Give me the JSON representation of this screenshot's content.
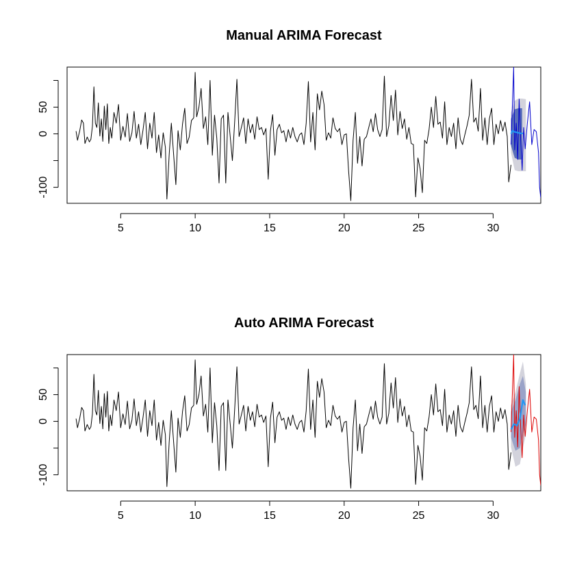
{
  "chart_data": [
    {
      "type": "line",
      "title": "Manual ARIMA Forecast",
      "xlabel": "",
      "ylabel": "",
      "xlim": [
        1.4,
        33.2
      ],
      "ylim": [
        -130,
        125
      ],
      "x_ticks": [
        5,
        10,
        15,
        20,
        25,
        30
      ],
      "x_tick_labels": [
        "5",
        "10",
        "15",
        "20",
        "25",
        "30"
      ],
      "y_ticks": [
        -100,
        -50,
        0,
        50,
        100
      ],
      "y_tick_labels": [
        "-100",
        "",
        "0",
        "50",
        ""
      ],
      "grid": false,
      "legend": "none",
      "colors": {
        "history": "#000000",
        "test": "#0000cc",
        "forecast": "#2196f3",
        "pi80": "#5a6fb8",
        "pi95": "#d3d3dc"
      },
      "history": {
        "x_start": 2,
        "x_end": 31.2,
        "points": [
          [
            2.0,
            5
          ],
          [
            2.1,
            -12
          ],
          [
            2.25,
            6
          ],
          [
            2.38,
            26
          ],
          [
            2.5,
            20
          ],
          [
            2.6,
            -18
          ],
          [
            2.75,
            -6
          ],
          [
            2.9,
            -15
          ],
          [
            3.0,
            -10
          ],
          [
            3.1,
            14
          ],
          [
            3.2,
            88
          ],
          [
            3.3,
            20
          ],
          [
            3.4,
            12
          ],
          [
            3.5,
            58
          ],
          [
            3.6,
            -4
          ],
          [
            3.7,
            28
          ],
          [
            3.8,
            -14
          ],
          [
            3.9,
            52
          ],
          [
            4.0,
            8
          ],
          [
            4.1,
            56
          ],
          [
            4.2,
            -18
          ],
          [
            4.3,
            12
          ],
          [
            4.4,
            -8
          ],
          [
            4.55,
            40
          ],
          [
            4.7,
            20
          ],
          [
            4.85,
            55
          ],
          [
            5.0,
            -12
          ],
          [
            5.15,
            14
          ],
          [
            5.3,
            -6
          ],
          [
            5.45,
            38
          ],
          [
            5.6,
            -14
          ],
          [
            5.75,
            2
          ],
          [
            5.9,
            42
          ],
          [
            6.05,
            -8
          ],
          [
            6.2,
            18
          ],
          [
            6.35,
            -20
          ],
          [
            6.5,
            8
          ],
          [
            6.65,
            40
          ],
          [
            6.8,
            -28
          ],
          [
            6.95,
            20
          ],
          [
            7.1,
            -8
          ],
          [
            7.25,
            40
          ],
          [
            7.4,
            -35
          ],
          [
            7.55,
            -2
          ],
          [
            7.7,
            -45
          ],
          [
            7.85,
            2
          ],
          [
            8.0,
            -25
          ],
          [
            8.1,
            -122
          ],
          [
            8.25,
            -40
          ],
          [
            8.4,
            20
          ],
          [
            8.55,
            -38
          ],
          [
            8.7,
            -95
          ],
          [
            8.85,
            6
          ],
          [
            9.0,
            -30
          ],
          [
            9.15,
            18
          ],
          [
            9.3,
            48
          ],
          [
            9.45,
            -18
          ],
          [
            9.6,
            -6
          ],
          [
            9.75,
            25
          ],
          [
            9.9,
            30
          ],
          [
            10.0,
            115
          ],
          [
            10.1,
            32
          ],
          [
            10.25,
            50
          ],
          [
            10.4,
            85
          ],
          [
            10.55,
            10
          ],
          [
            10.7,
            32
          ],
          [
            10.85,
            -20
          ],
          [
            11.0,
            100
          ],
          [
            11.15,
            -40
          ],
          [
            11.3,
            35
          ],
          [
            11.45,
            -8
          ],
          [
            11.6,
            -92
          ],
          [
            11.75,
            28
          ],
          [
            11.9,
            35
          ],
          [
            12.05,
            -92
          ],
          [
            12.2,
            40
          ],
          [
            12.35,
            -5
          ],
          [
            12.5,
            -50
          ],
          [
            12.65,
            22
          ],
          [
            12.8,
            102
          ],
          [
            12.95,
            -5
          ],
          [
            13.1,
            12
          ],
          [
            13.25,
            30
          ],
          [
            13.4,
            -18
          ],
          [
            13.55,
            28
          ],
          [
            13.7,
            2
          ],
          [
            13.85,
            18
          ],
          [
            14.0,
            -10
          ],
          [
            14.15,
            32
          ],
          [
            14.3,
            8
          ],
          [
            14.45,
            12
          ],
          [
            14.6,
            -2
          ],
          [
            14.75,
            10
          ],
          [
            14.9,
            -85
          ],
          [
            15.05,
            5
          ],
          [
            15.2,
            36
          ],
          [
            15.35,
            -40
          ],
          [
            15.5,
            8
          ],
          [
            15.65,
            18
          ],
          [
            15.8,
            2
          ],
          [
            15.95,
            6
          ],
          [
            16.1,
            -15
          ],
          [
            16.25,
            8
          ],
          [
            16.4,
            -8
          ],
          [
            16.55,
            12
          ],
          [
            16.7,
            -5
          ],
          [
            16.85,
            -15
          ],
          [
            17.0,
            -2
          ],
          [
            17.15,
            2
          ],
          [
            17.3,
            -20
          ],
          [
            17.45,
            20
          ],
          [
            17.6,
            98
          ],
          [
            17.75,
            -15
          ],
          [
            17.9,
            40
          ],
          [
            18.05,
            -30
          ],
          [
            18.2,
            75
          ],
          [
            18.35,
            45
          ],
          [
            18.5,
            80
          ],
          [
            18.65,
            55
          ],
          [
            18.8,
            -12
          ],
          [
            18.95,
            2
          ],
          [
            19.1,
            -8
          ],
          [
            19.25,
            30
          ],
          [
            19.4,
            10
          ],
          [
            19.55,
            4
          ],
          [
            19.7,
            10
          ],
          [
            19.85,
            -20
          ],
          [
            20.0,
            -2
          ],
          [
            20.15,
            0
          ],
          [
            20.3,
            -70
          ],
          [
            20.45,
            -125
          ],
          [
            20.6,
            -12
          ],
          [
            20.75,
            40
          ],
          [
            20.9,
            -55
          ],
          [
            21.05,
            -5
          ],
          [
            21.2,
            -60
          ],
          [
            21.35,
            -10
          ],
          [
            21.5,
            -5
          ],
          [
            21.65,
            12
          ],
          [
            21.8,
            28
          ],
          [
            21.95,
            4
          ],
          [
            22.1,
            38
          ],
          [
            22.25,
            8
          ],
          [
            22.4,
            -5
          ],
          [
            22.55,
            8
          ],
          [
            22.7,
            108
          ],
          [
            22.85,
            -5
          ],
          [
            23.0,
            15
          ],
          [
            23.15,
            72
          ],
          [
            23.3,
            25
          ],
          [
            23.45,
            82
          ],
          [
            23.6,
            -2
          ],
          [
            23.75,
            42
          ],
          [
            23.9,
            10
          ],
          [
            24.05,
            28
          ],
          [
            24.2,
            -10
          ],
          [
            24.35,
            12
          ],
          [
            24.5,
            -18
          ],
          [
            24.65,
            -20
          ],
          [
            24.8,
            -118
          ],
          [
            24.95,
            -45
          ],
          [
            25.1,
            -65
          ],
          [
            25.25,
            -110
          ],
          [
            25.4,
            -12
          ],
          [
            25.55,
            -18
          ],
          [
            25.7,
            8
          ],
          [
            25.85,
            50
          ],
          [
            26.0,
            12
          ],
          [
            26.15,
            70
          ],
          [
            26.3,
            18
          ],
          [
            26.45,
            22
          ],
          [
            26.6,
            -8
          ],
          [
            26.75,
            60
          ],
          [
            26.9,
            -20
          ],
          [
            27.05,
            12
          ],
          [
            27.2,
            -5
          ],
          [
            27.35,
            20
          ],
          [
            27.5,
            -28
          ],
          [
            27.65,
            30
          ],
          [
            27.8,
            -10
          ],
          [
            27.95,
            -20
          ],
          [
            28.1,
            -2
          ],
          [
            28.25,
            15
          ],
          [
            28.4,
            35
          ],
          [
            28.55,
            102
          ],
          [
            28.7,
            22
          ],
          [
            28.85,
            30
          ],
          [
            29.0,
            5
          ],
          [
            29.15,
            85
          ],
          [
            29.3,
            -12
          ],
          [
            29.45,
            30
          ],
          [
            29.6,
            -20
          ],
          [
            29.75,
            28
          ],
          [
            29.9,
            48
          ],
          [
            30.05,
            -20
          ],
          [
            30.2,
            18
          ],
          [
            30.35,
            0
          ],
          [
            30.5,
            25
          ],
          [
            30.65,
            5
          ],
          [
            30.8,
            22
          ],
          [
            30.95,
            -5
          ],
          [
            31.05,
            -90
          ],
          [
            31.2,
            -58
          ]
        ]
      },
      "interval_95": [
        [
          31.2,
          -35,
          40
        ],
        [
          31.45,
          -68,
          62
        ],
        [
          31.7,
          -70,
          66
        ],
        [
          31.95,
          -70,
          66
        ],
        [
          32.2,
          -70,
          65
        ]
      ],
      "interval_80": [
        [
          31.2,
          -22,
          28
        ],
        [
          31.45,
          -45,
          46
        ],
        [
          31.7,
          -48,
          48
        ],
        [
          31.95,
          -48,
          48
        ]
      ],
      "forecast": [
        [
          31.2,
          0
        ],
        [
          31.3,
          6
        ],
        [
          31.4,
          4
        ],
        [
          31.55,
          3
        ],
        [
          31.7,
          2
        ],
        [
          31.85,
          1
        ],
        [
          32.0,
          1
        ]
      ],
      "test": [
        [
          31.2,
          -20
        ],
        [
          31.3,
          60
        ],
        [
          31.38,
          125
        ],
        [
          31.45,
          -30
        ],
        [
          31.55,
          20
        ],
        [
          31.65,
          -48
        ],
        [
          31.75,
          65
        ],
        [
          31.85,
          -10
        ],
        [
          31.95,
          -68
        ],
        [
          32.05,
          12
        ],
        [
          32.15,
          -28
        ],
        [
          32.3,
          20
        ],
        [
          32.45,
          60
        ],
        [
          32.6,
          -20
        ],
        [
          32.75,
          8
        ],
        [
          32.9,
          4
        ],
        [
          33.05,
          -35
        ],
        [
          33.12,
          -100
        ],
        [
          33.2,
          -120
        ]
      ]
    },
    {
      "type": "line",
      "title": "Auto ARIMA Forecast",
      "xlabel": "",
      "ylabel": "",
      "xlim": [
        1.4,
        33.2
      ],
      "ylim": [
        -130,
        125
      ],
      "x_ticks": [
        5,
        10,
        15,
        20,
        25,
        30
      ],
      "x_tick_labels": [
        "5",
        "10",
        "15",
        "20",
        "25",
        "30"
      ],
      "y_ticks": [
        -100,
        -50,
        0,
        50,
        100
      ],
      "y_tick_labels": [
        "-100",
        "",
        "0",
        "50",
        ""
      ],
      "grid": false,
      "legend": "none",
      "colors": {
        "history": "#000000",
        "test": "#dd0000",
        "forecast": "#2196f3",
        "pi80": "#9aa3c8",
        "pi95": "#d3d3dc"
      },
      "history": {
        "x_start": 2,
        "x_end": 31.2,
        "same_as": "Manual ARIMA Forecast"
      },
      "interval_95": [
        [
          31.2,
          -48,
          30
        ],
        [
          31.5,
          -85,
          55
        ],
        [
          31.8,
          -80,
          90
        ],
        [
          32.0,
          -50,
          112
        ],
        [
          32.2,
          -25,
          70
        ]
      ],
      "interval_80": [
        [
          31.2,
          -30,
          18
        ],
        [
          31.5,
          -55,
          40
        ],
        [
          31.8,
          -50,
          70
        ],
        [
          32.0,
          -25,
          85
        ],
        [
          32.2,
          -5,
          55
        ]
      ],
      "forecast": [
        [
          31.2,
          -15
        ],
        [
          31.4,
          -5
        ],
        [
          31.6,
          -8
        ],
        [
          31.8,
          5
        ],
        [
          32.0,
          40
        ],
        [
          32.15,
          30
        ]
      ],
      "test": [
        [
          31.2,
          -20
        ],
        [
          31.3,
          60
        ],
        [
          31.38,
          125
        ],
        [
          31.45,
          -30
        ],
        [
          31.55,
          20
        ],
        [
          31.65,
          -48
        ],
        [
          31.75,
          65
        ],
        [
          31.85,
          -10
        ],
        [
          31.95,
          -68
        ],
        [
          32.05,
          12
        ],
        [
          32.15,
          -28
        ],
        [
          32.3,
          20
        ],
        [
          32.45,
          60
        ],
        [
          32.6,
          -20
        ],
        [
          32.75,
          8
        ],
        [
          32.9,
          4
        ],
        [
          33.05,
          -35
        ],
        [
          33.12,
          -100
        ],
        [
          33.2,
          -120
        ]
      ]
    }
  ]
}
